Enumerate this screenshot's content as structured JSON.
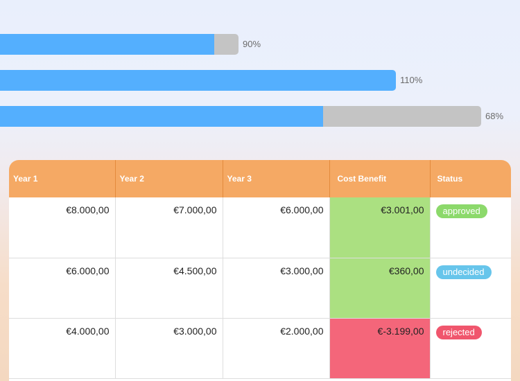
{
  "progress": [
    {
      "label": "90%",
      "value": 0.9
    },
    {
      "label": "110%",
      "value": 1.1
    },
    {
      "label": "68%",
      "value": 0.68
    }
  ],
  "colors": {
    "bar_fill": "#54affe",
    "bar_track": "#c4c4c4",
    "header": "#f5a964",
    "positive": "#abe081",
    "negative": "#f4667a",
    "approved": "#8cd96b",
    "undecided": "#67c5eb",
    "rejected": "#f0566d"
  },
  "table": {
    "headers": [
      "Year 1",
      "Year 2",
      "Year 3",
      "Cost Benefit",
      "Status"
    ],
    "rows": [
      {
        "y1": "€8.000,00",
        "y2": "€7.000,00",
        "y3": "€6.000,00",
        "cost_benefit": "€3.001,00",
        "status": "approved"
      },
      {
        "y1": "€6.000,00",
        "y2": "€4.500,00",
        "y3": "€3.000,00",
        "cost_benefit": "€360,00",
        "status": "undecided"
      },
      {
        "y1": "€4.000,00",
        "y2": "€3.000,00",
        "y3": "€2.000,00",
        "cost_benefit": "€-3.199,00",
        "status": "rejected"
      }
    ]
  }
}
